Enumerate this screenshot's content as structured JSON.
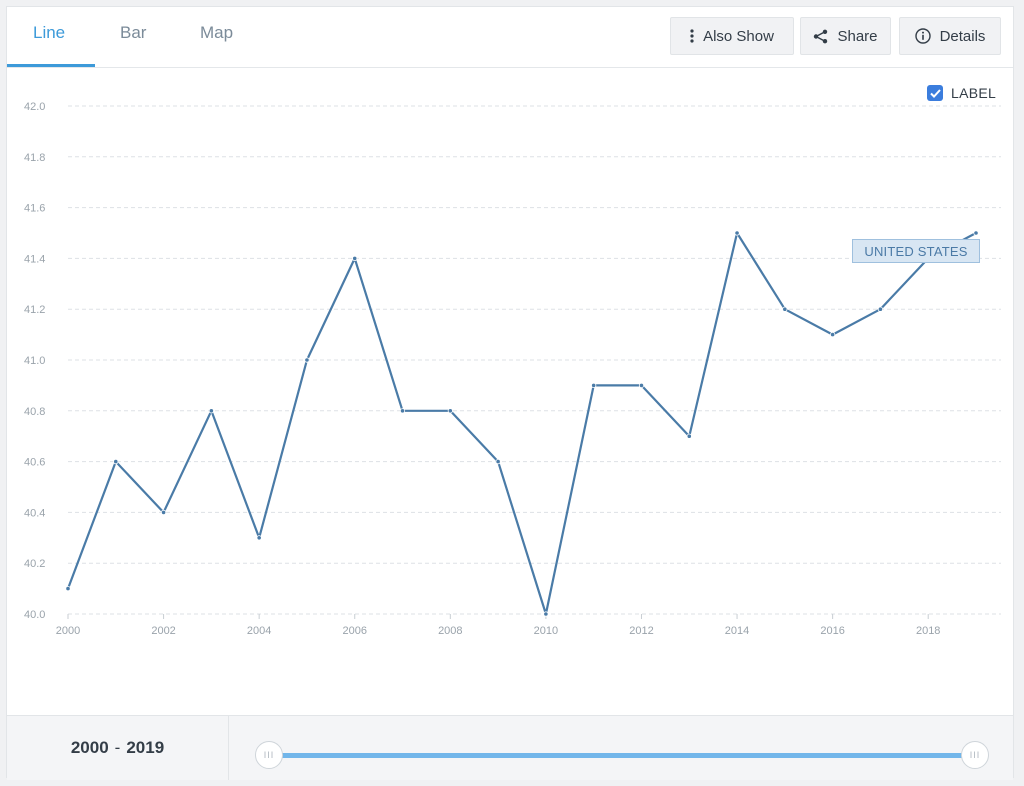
{
  "tabs": [
    {
      "label": "Line",
      "active": true
    },
    {
      "label": "Bar",
      "active": false
    },
    {
      "label": "Map",
      "active": false
    }
  ],
  "toolbar": {
    "also_show": "Also Show",
    "share": "Share",
    "details": "Details"
  },
  "label_toggle": {
    "text": "LABEL",
    "checked": true
  },
  "colors": {
    "accent": "#3d9ad9",
    "line": "#4a7ba7",
    "checkbox": "#3b7ddd",
    "slider": "#72b6ea"
  },
  "chart_data": {
    "type": "line",
    "x": [
      2000,
      2001,
      2002,
      2003,
      2004,
      2005,
      2006,
      2007,
      2008,
      2009,
      2010,
      2011,
      2012,
      2013,
      2014,
      2015,
      2016,
      2017,
      2018,
      2019
    ],
    "series": [
      {
        "name": "UNITED STATES",
        "values": [
          40.1,
          40.6,
          40.4,
          40.8,
          40.3,
          41.0,
          41.4,
          40.8,
          40.8,
          40.6,
          40.0,
          40.9,
          40.9,
          40.7,
          41.5,
          41.2,
          41.1,
          41.2,
          41.4,
          41.5
        ]
      }
    ],
    "xticks": [
      "2000",
      "2002",
      "2004",
      "2006",
      "2008",
      "2010",
      "2012",
      "2014",
      "2016",
      "2018"
    ],
    "yticks": [
      "40.0",
      "40.2",
      "40.4",
      "40.6",
      "40.8",
      "41.0",
      "41.2",
      "41.4",
      "41.6",
      "41.8",
      "42.0"
    ],
    "ylim": [
      40.0,
      42.0
    ],
    "xlim": [
      2000,
      2019
    ],
    "grid": true,
    "title": "",
    "xlabel": "",
    "ylabel": ""
  },
  "range": {
    "start": "2000",
    "end": "2019",
    "separator": "-",
    "handle_glyph": "III"
  }
}
